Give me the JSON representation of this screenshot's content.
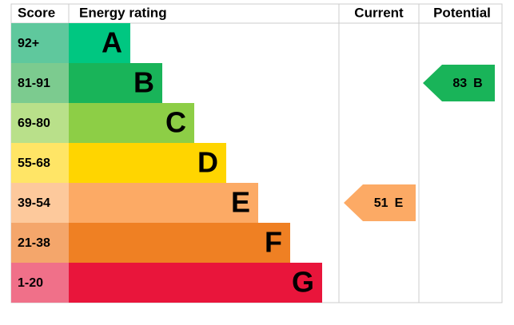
{
  "header": {
    "score": "Score",
    "rating": "Energy rating",
    "current": "Current",
    "potential": "Potential"
  },
  "bands": [
    {
      "score": "92+",
      "letter": "A",
      "color": "#00c781",
      "light": "#5fc89d"
    },
    {
      "score": "81-91",
      "letter": "B",
      "color": "#19b459",
      "light": "#7ccb8f"
    },
    {
      "score": "69-80",
      "letter": "C",
      "color": "#8dce46",
      "light": "#b9e08a"
    },
    {
      "score": "55-68",
      "letter": "D",
      "color": "#ffd500",
      "light": "#ffe566"
    },
    {
      "score": "39-54",
      "letter": "E",
      "color": "#fcaa65",
      "light": "#fdc99c"
    },
    {
      "score": "21-38",
      "letter": "F",
      "color": "#ef8023",
      "light": "#f4a66b"
    },
    {
      "score": "1-20",
      "letter": "G",
      "color": "#e9153b",
      "light": "#f07089"
    }
  ],
  "current": {
    "value": 51,
    "letter": "E"
  },
  "potential": {
    "value": 83,
    "letter": "B"
  }
}
